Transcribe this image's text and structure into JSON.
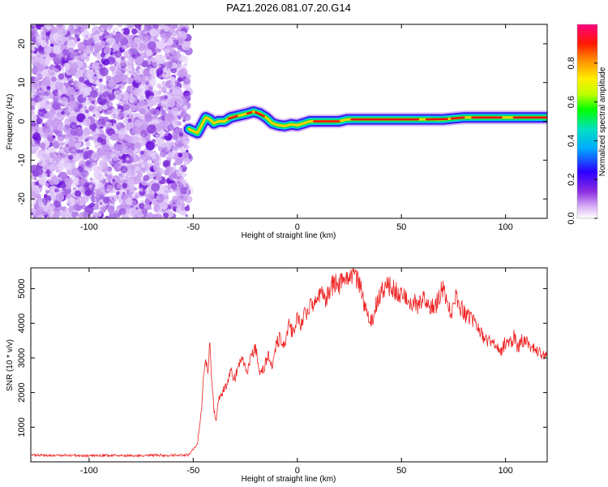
{
  "title": "PAZ1.2026.081.07.20.G14",
  "chart_data": [
    {
      "type": "heatmap",
      "name": "spectrogram",
      "xlabel": "Height of straight line (km)",
      "ylabel": "Frequency (Hz)",
      "xlim": [
        -128,
        120
      ],
      "ylim": [
        -25,
        25
      ],
      "xticks": [
        -100,
        -50,
        0,
        50,
        100
      ],
      "xtick_labels": [
        "-100",
        "-50",
        "0",
        "50",
        "100"
      ],
      "yticks": [
        -20,
        -10,
        0,
        10,
        20
      ],
      "ytick_labels": [
        "-20",
        "-10",
        "0",
        "10",
        "20"
      ],
      "noise_region_x": [
        -128,
        -52
      ],
      "ridge": {
        "x": [
          -52,
          -50,
          -48,
          -46,
          -44,
          -42,
          -40,
          -38,
          -35,
          -32,
          -28,
          -24,
          -21,
          -18,
          -15,
          -12,
          -9,
          -6,
          -3,
          0,
          3,
          6,
          10,
          15,
          20,
          24,
          30,
          40,
          50,
          60,
          70,
          80,
          90,
          100,
          110,
          120
        ],
        "freq": [
          -2,
          -2.5,
          -3,
          -1,
          1,
          0.5,
          -0.5,
          0,
          0,
          1,
          1.5,
          2,
          2.5,
          2,
          1,
          -0.5,
          -1,
          -1.2,
          -0.8,
          -1,
          -0.5,
          0,
          0,
          0,
          0,
          0.5,
          0.5,
          0.5,
          0.5,
          0.5,
          0.5,
          1,
          1,
          1,
          1,
          1
        ]
      },
      "colorbar": {
        "label": "Normalized spectral amplitude",
        "range": [
          0,
          1
        ],
        "ticks": [
          0.0,
          0.2,
          0.4,
          0.6,
          0.8
        ],
        "tick_labels": [
          "0.0",
          "0.2",
          "0.4",
          "0.6",
          "0.8"
        ]
      }
    },
    {
      "type": "line",
      "name": "snr",
      "xlabel": "Height of straight line (km)",
      "ylabel": "SNR (10 * v/v)",
      "xlim": [
        -128,
        120
      ],
      "ylim": [
        0,
        5600
      ],
      "xticks": [
        -100,
        -50,
        0,
        50,
        100
      ],
      "xtick_labels": [
        "-100",
        "-50",
        "0",
        "50",
        "100"
      ],
      "yticks": [
        1000,
        2000,
        3000,
        4000,
        5000
      ],
      "ytick_labels": [
        "1000",
        "2000",
        "3000",
        "4000",
        "5000"
      ],
      "series": [
        {
          "name": "SNR",
          "color": "#ee2222",
          "x": [
            -128,
            -120,
            -110,
            -100,
            -90,
            -80,
            -70,
            -60,
            -52,
            -48,
            -46,
            -45,
            -44,
            -43,
            -42,
            -41,
            -40,
            -39,
            -38,
            -36,
            -34,
            -32,
            -30,
            -28,
            -26,
            -24,
            -22,
            -20,
            -18,
            -16,
            -14,
            -12,
            -10,
            -8,
            -6,
            -4,
            -2,
            0,
            2,
            4,
            6,
            8,
            10,
            12,
            14,
            16,
            18,
            20,
            22,
            24,
            26,
            28,
            30,
            32,
            34,
            36,
            38,
            40,
            42,
            44,
            46,
            48,
            50,
            52,
            54,
            56,
            58,
            60,
            62,
            64,
            66,
            68,
            70,
            72,
            74,
            76,
            78,
            80,
            82,
            84,
            86,
            88,
            90,
            92,
            94,
            96,
            98,
            100,
            102,
            104,
            106,
            108,
            110,
            112,
            114,
            116,
            118,
            120
          ],
          "y": [
            200,
            180,
            190,
            175,
            185,
            180,
            190,
            185,
            200,
            500,
            1500,
            2500,
            3000,
            2600,
            3400,
            2200,
            1500,
            1200,
            1800,
            2000,
            2200,
            2600,
            2400,
            2800,
            3000,
            2600,
            3100,
            3300,
            2500,
            2700,
            3100,
            2800,
            3400,
            3600,
            3300,
            3900,
            3700,
            4100,
            4000,
            4300,
            4500,
            4400,
            4800,
            4900,
            4700,
            5000,
            5200,
            5100,
            5300,
            5200,
            5400,
            5300,
            5100,
            4600,
            4200,
            4100,
            4600,
            4900,
            5000,
            5100,
            5000,
            4900,
            4800,
            4700,
            4600,
            4650,
            4500,
            4700,
            4600,
            4500,
            4400,
            4800,
            5000,
            4600,
            4300,
            4800,
            4500,
            4300,
            4200,
            4100,
            3900,
            3700,
            3600,
            3500,
            3400,
            3300,
            3200,
            3450,
            3400,
            3600,
            3300,
            3500,
            3500,
            3300,
            3250,
            3200,
            3050,
            3100
          ]
        }
      ]
    }
  ]
}
